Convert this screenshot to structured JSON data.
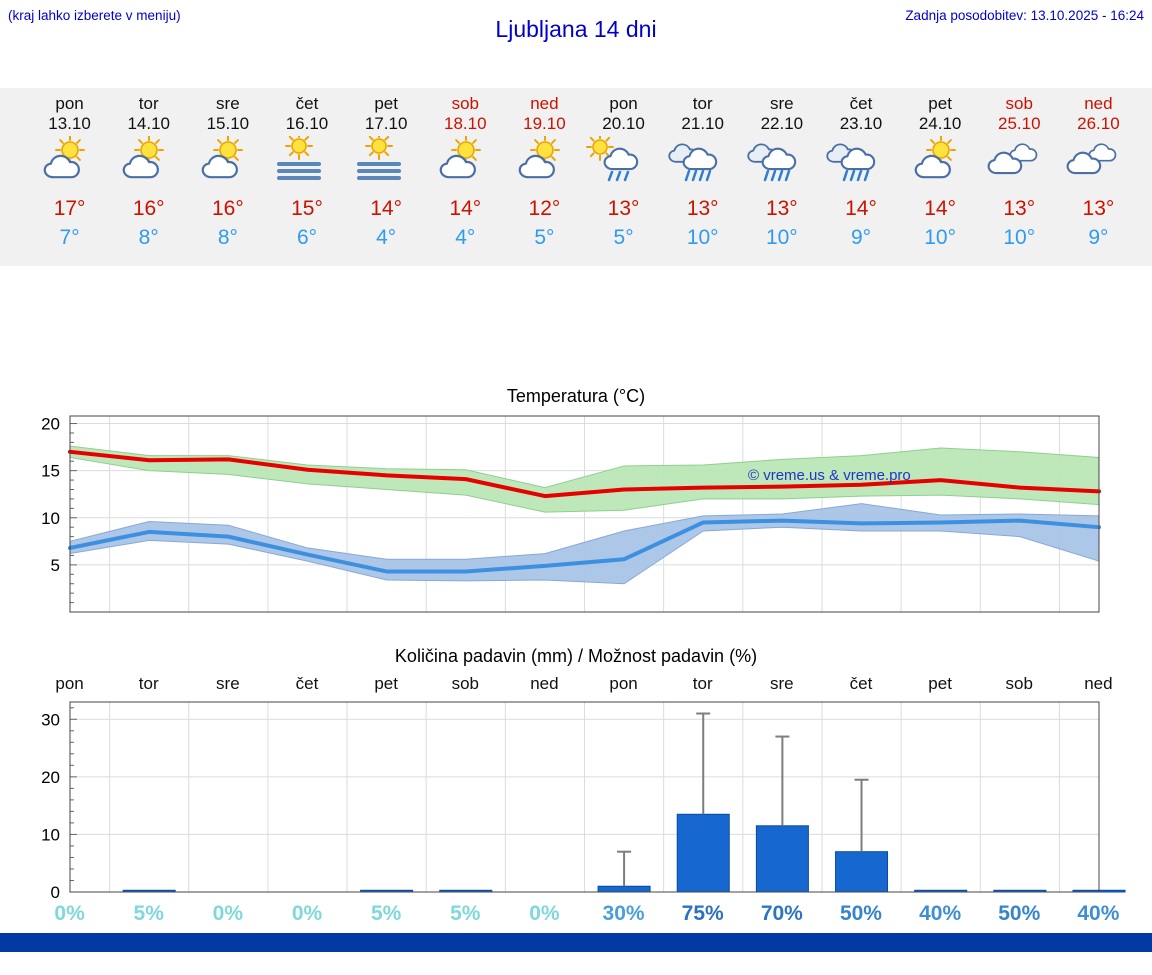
{
  "header": {
    "note": "(kraj lahko izberete v meniju)",
    "title": "Ljubljana 14 dni",
    "updated": "Zadnja posodobitev: 13.10.2025 - 16:24"
  },
  "colors": {
    "link_blue": "#0000cc",
    "temp_max": "#cc1100",
    "temp_min": "#2f9bf0",
    "weekend_red": "#cc1100",
    "strip_background": "#f1f1f1",
    "footer_bar": "#0239a3"
  },
  "forecast": {
    "days": [
      {
        "name": "pon",
        "date": "13.10",
        "weekend": false,
        "icon": "sun-cloud",
        "tmax": "17°",
        "tmin": "7°"
      },
      {
        "name": "tor",
        "date": "14.10",
        "weekend": false,
        "icon": "sun-cloud",
        "tmax": "16°",
        "tmin": "8°"
      },
      {
        "name": "sre",
        "date": "15.10",
        "weekend": false,
        "icon": "sun-cloud",
        "tmax": "16°",
        "tmin": "8°"
      },
      {
        "name": "čet",
        "date": "16.10",
        "weekend": false,
        "icon": "fog",
        "tmax": "15°",
        "tmin": "6°"
      },
      {
        "name": "pet",
        "date": "17.10",
        "weekend": false,
        "icon": "fog",
        "tmax": "14°",
        "tmin": "4°"
      },
      {
        "name": "sob",
        "date": "18.10",
        "weekend": true,
        "icon": "sun-cloud",
        "tmax": "14°",
        "tmin": "4°"
      },
      {
        "name": "ned",
        "date": "19.10",
        "weekend": true,
        "icon": "sun-cloud",
        "tmax": "12°",
        "tmin": "5°"
      },
      {
        "name": "pon",
        "date": "20.10",
        "weekend": false,
        "icon": "sun-rain",
        "tmax": "13°",
        "tmin": "5°"
      },
      {
        "name": "tor",
        "date": "21.10",
        "weekend": false,
        "icon": "rain",
        "tmax": "13°",
        "tmin": "10°"
      },
      {
        "name": "sre",
        "date": "22.10",
        "weekend": false,
        "icon": "rain",
        "tmax": "13°",
        "tmin": "10°"
      },
      {
        "name": "čet",
        "date": "23.10",
        "weekend": false,
        "icon": "rain",
        "tmax": "14°",
        "tmin": "9°"
      },
      {
        "name": "pet",
        "date": "24.10",
        "weekend": false,
        "icon": "sun-cloud",
        "tmax": "14°",
        "tmin": "10°"
      },
      {
        "name": "sob",
        "date": "25.10",
        "weekend": true,
        "icon": "cloud",
        "tmax": "13°",
        "tmin": "10°"
      },
      {
        "name": "ned",
        "date": "26.10",
        "weekend": true,
        "icon": "cloud",
        "tmax": "13°",
        "tmin": "9°"
      }
    ]
  },
  "chart_data": [
    {
      "type": "line",
      "title": "Temperatura (°C)",
      "categories": [
        "pon",
        "tor",
        "sre",
        "čet",
        "pet",
        "sob",
        "ned",
        "pon",
        "tor",
        "sre",
        "čet",
        "pet",
        "sob",
        "ned"
      ],
      "ylim": [
        0,
        20.8
      ],
      "yticks": [
        5,
        10,
        15,
        20
      ],
      "grid": true,
      "watermark": "© vreme.us & vreme.pro",
      "series": [
        {
          "name": "max temperature",
          "color": "#e60000",
          "values": [
            17,
            16.1,
            16.2,
            15.1,
            14.5,
            14.1,
            12.3,
            13,
            13.2,
            13.3,
            13.5,
            14,
            13.2,
            12.8
          ]
        },
        {
          "name": "min temperature",
          "color": "#3d8fe0",
          "values": [
            6.8,
            8.5,
            8,
            6.1,
            4.3,
            4.3,
            4.9,
            5.6,
            9.5,
            9.7,
            9.4,
            9.5,
            9.7,
            9
          ]
        }
      ],
      "bands": [
        {
          "name": "max temperature range",
          "color": "#b9e6b4",
          "edge": "#8fcf8f",
          "upper": [
            17.6,
            16.6,
            16.6,
            15.6,
            15.2,
            15.1,
            13.2,
            15.5,
            15.6,
            16.2,
            16.6,
            17.4,
            17,
            16.4
          ],
          "lower": [
            16.4,
            15,
            14.6,
            13.6,
            13,
            12.4,
            10.6,
            10.8,
            12,
            12,
            12.3,
            12.4,
            12,
            11.4
          ]
        },
        {
          "name": "min temperature range",
          "color": "#a6c2e6",
          "edge": "#87a8d8",
          "upper": [
            7.5,
            9.6,
            9.2,
            6.8,
            5.6,
            5.6,
            6.2,
            8.6,
            10.2,
            10.4,
            11.5,
            10.3,
            10.4,
            10.2
          ],
          "lower": [
            6.2,
            7.6,
            7.2,
            5.4,
            3.4,
            3.3,
            3.4,
            3,
            8.6,
            9,
            8.6,
            8.6,
            8,
            5.4
          ]
        }
      ]
    },
    {
      "type": "bar",
      "title": "Količina padavin (mm) / Možnost padavin (%)",
      "categories": [
        "pon",
        "tor",
        "sre",
        "čet",
        "pet",
        "sob",
        "ned",
        "pon",
        "tor",
        "sre",
        "čet",
        "pet",
        "sob",
        "ned"
      ],
      "ylim": [
        0,
        33
      ],
      "yticks": [
        0,
        10,
        20,
        30
      ],
      "ylabel": "mm",
      "bar_color": "#1668d0",
      "bar_edge": "#0a4a9e",
      "whisker_color": "#7d7d7d",
      "values": [
        0,
        0.3,
        0,
        0,
        0.3,
        0.3,
        0,
        1,
        13.5,
        11.5,
        7,
        0.3,
        0.3,
        0.3
      ],
      "whisker_max": [
        0,
        0,
        0,
        0,
        0,
        0,
        0,
        7,
        31,
        27,
        19.5,
        0,
        0,
        0
      ],
      "percent_labels": [
        {
          "text": "0%",
          "color": "#7fd8da"
        },
        {
          "text": "5%",
          "color": "#7fd8da"
        },
        {
          "text": "0%",
          "color": "#7fd8da"
        },
        {
          "text": "0%",
          "color": "#7fd8da"
        },
        {
          "text": "5%",
          "color": "#7fd8da"
        },
        {
          "text": "5%",
          "color": "#7fd8da"
        },
        {
          "text": "0%",
          "color": "#7fd8da"
        },
        {
          "text": "30%",
          "color": "#4b9fd8"
        },
        {
          "text": "75%",
          "color": "#2d6fc0"
        },
        {
          "text": "70%",
          "color": "#2d74c4"
        },
        {
          "text": "50%",
          "color": "#3684cc"
        },
        {
          "text": "40%",
          "color": "#3f8ed4"
        },
        {
          "text": "50%",
          "color": "#3684cc"
        },
        {
          "text": "40%",
          "color": "#3f8ed4"
        }
      ]
    }
  ]
}
